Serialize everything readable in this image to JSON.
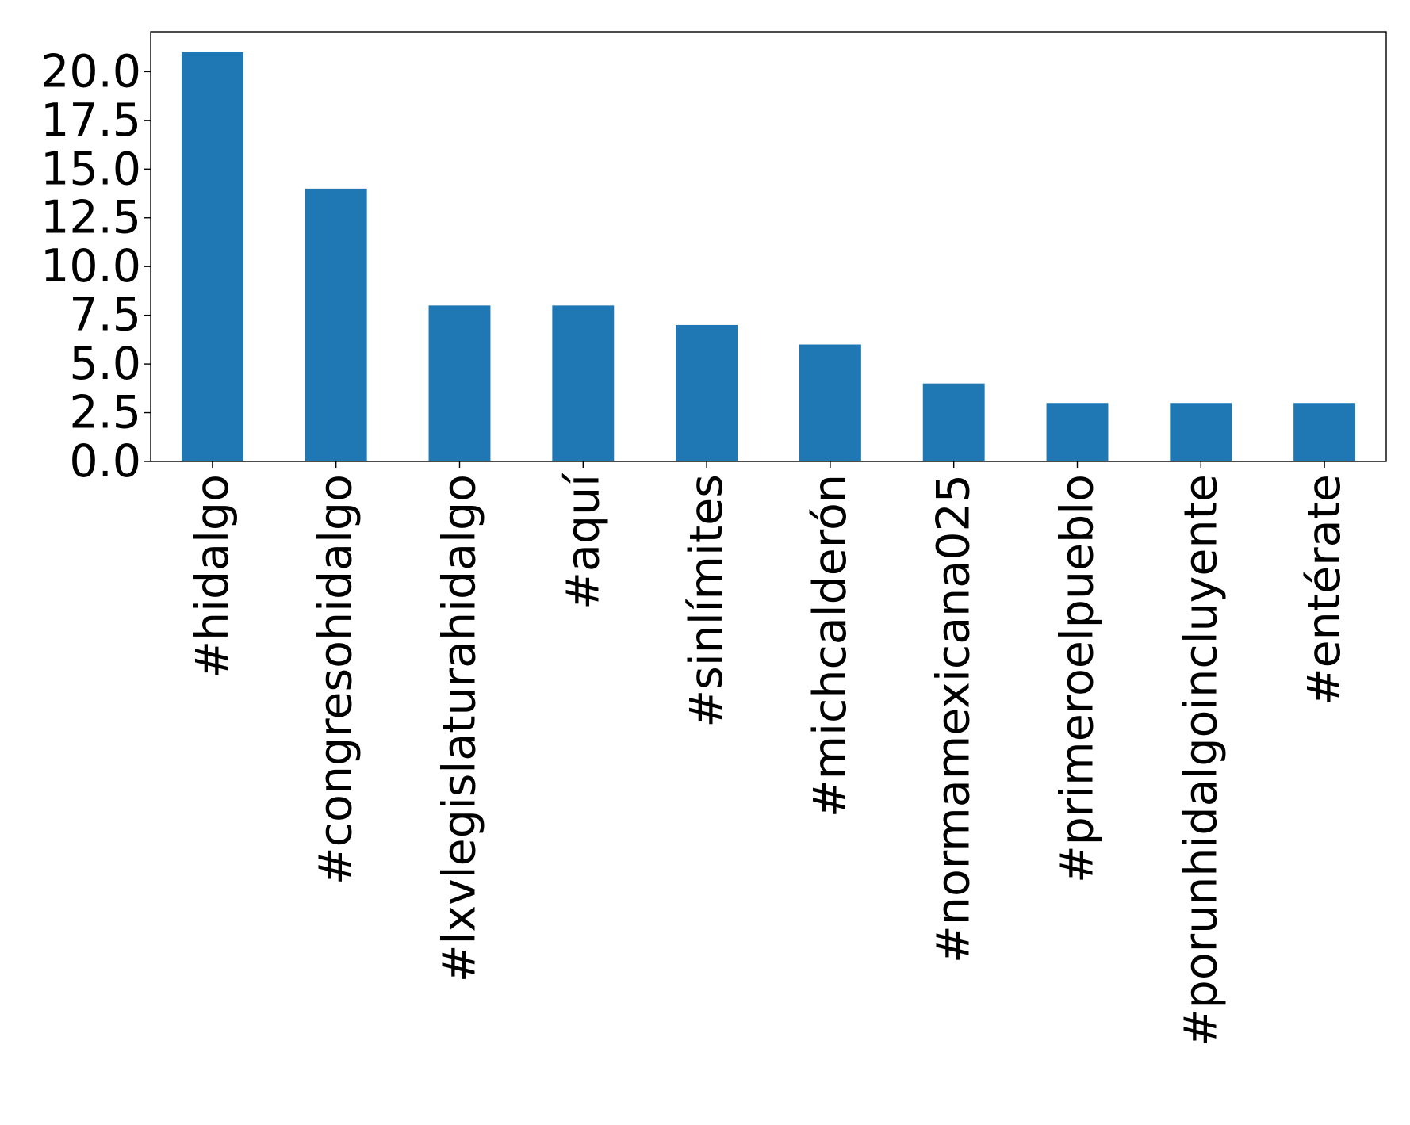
{
  "chart_data": {
    "type": "bar",
    "categories": [
      "#hidalgo",
      "#congresohidalgo",
      "#lxvlegislaturahidalgo",
      "#aquí",
      "#sinlímites",
      "#michcalderón",
      "#normamexicana025",
      "#primeroelpueblo",
      "#porunhidalgoincluyente",
      "#entérate"
    ],
    "values": [
      21,
      14,
      8,
      8,
      7,
      6,
      4,
      3,
      3,
      3
    ],
    "ylim": [
      0,
      22.05
    ],
    "yticks": [
      0,
      2.5,
      5,
      7.5,
      10,
      12.5,
      15,
      17.5,
      20
    ],
    "ytick_labels": [
      "0.0",
      "2.5",
      "5.0",
      "7.5",
      "10.0",
      "12.5",
      "15.0",
      "17.5",
      "20.0"
    ],
    "title": "",
    "xlabel": "",
    "ylabel": "",
    "grid": false,
    "legend": false,
    "bar_color": "#1f77b4"
  }
}
